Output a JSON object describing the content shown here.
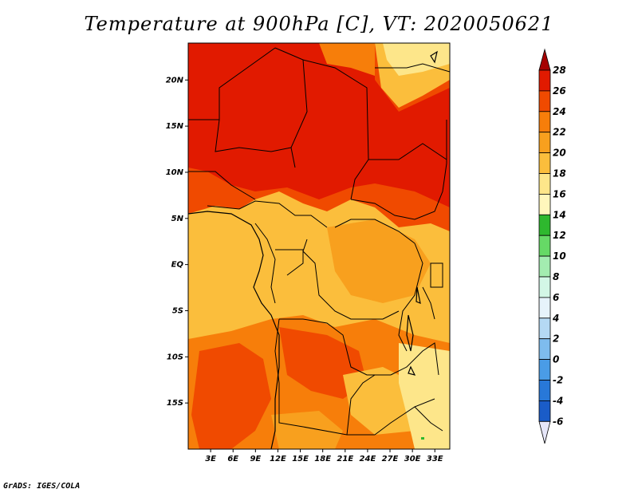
{
  "title": "Temperature at 900hPa [C], VT: 2020050621",
  "credit": "GrADS: IGES/COLA",
  "map": {
    "lon_range": [
      0,
      35
    ],
    "lat_range": [
      -20,
      24
    ],
    "lon_ticks": [
      "3E",
      "6E",
      "9E",
      "12E",
      "15E",
      "18E",
      "21E",
      "24E",
      "27E",
      "30E",
      "33E"
    ],
    "lat_ticks": [
      "20N",
      "15N",
      "10N",
      "5N",
      "EQ",
      "5S",
      "10S",
      "15S"
    ]
  },
  "colorbar": {
    "labels": [
      "28",
      "26",
      "24",
      "22",
      "20",
      "18",
      "16",
      "14",
      "12",
      "10",
      "8",
      "6",
      "4",
      "2",
      "0",
      "-2",
      "-4",
      "-6"
    ],
    "colors": [
      "#a50000",
      "#e11a00",
      "#f04a00",
      "#f77e0a",
      "#f8a01e",
      "#fbbe3c",
      "#fde68a",
      "#fff7bc",
      "#2eb82e",
      "#66d966",
      "#a3ecb0",
      "#d3f7e6",
      "#e6f3fb",
      "#b5d9f4",
      "#7ebcee",
      "#4a9ce6",
      "#2878d8",
      "#1a5cc8",
      "#103fa8",
      "#0a2080",
      "#000060",
      "#e6e6f8"
    ]
  }
}
